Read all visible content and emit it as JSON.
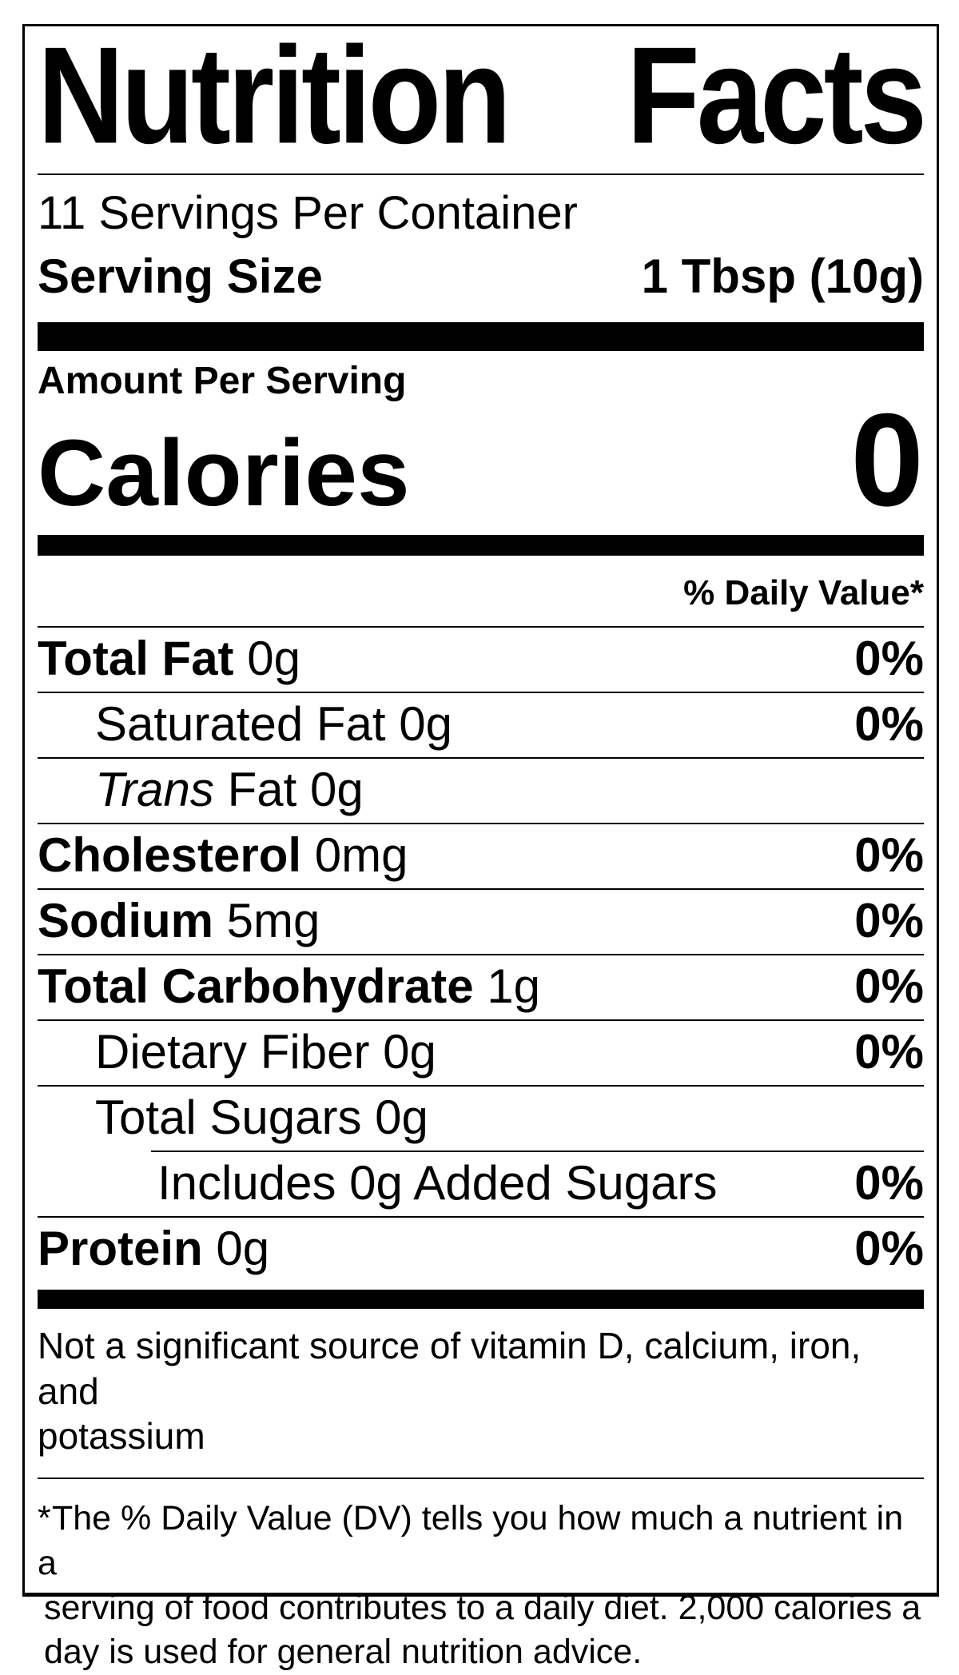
{
  "title": {
    "left": "Nutrition",
    "right": "Facts"
  },
  "servings_per_container": "11 Servings Per Container",
  "serving_size": {
    "label": "Serving Size",
    "value": "1 Tbsp (10g)"
  },
  "amount_per_serving": "Amount Per Serving",
  "calories": {
    "label": "Calories",
    "value": "0"
  },
  "daily_value_header": "% Daily Value*",
  "rows": [
    {
      "name": "Total Fat",
      "rest": " 0g",
      "dv": "0%"
    },
    {
      "name": "Saturated Fat",
      "rest": " 0g",
      "dv": "0%"
    },
    {
      "name": "Trans",
      "rest": " Fat 0g",
      "dv": ""
    },
    {
      "name": "Cholesterol",
      "rest": " 0mg",
      "dv": "0%"
    },
    {
      "name": "Sodium",
      "rest": " 5mg",
      "dv": "0%"
    },
    {
      "name": "Total Carbohydrate",
      "rest": " 1g",
      "dv": "0%"
    },
    {
      "name": "Dietary Fiber",
      "rest": " 0g",
      "dv": "0%"
    },
    {
      "name": "Total Sugars",
      "rest": " 0g",
      "dv": ""
    },
    {
      "name": "Includes 0g Added Sugars",
      "rest": "",
      "dv": "0%"
    },
    {
      "name": "Protein",
      "rest": " 0g",
      "dv": "0%"
    }
  ],
  "notice_lines": [
    "Not a significant source of vitamin D, calcium, iron, and",
    "potassium"
  ],
  "footnote": {
    "marker": "*",
    "lines": [
      "The % Daily Value (DV) tells you how much a nutrient in a",
      "serving of food contributes to a daily diet. 2,000 calories a",
      "day is used for general nutrition advice."
    ]
  },
  "colors": {
    "ink": "#000000",
    "background": "#ffffff"
  }
}
